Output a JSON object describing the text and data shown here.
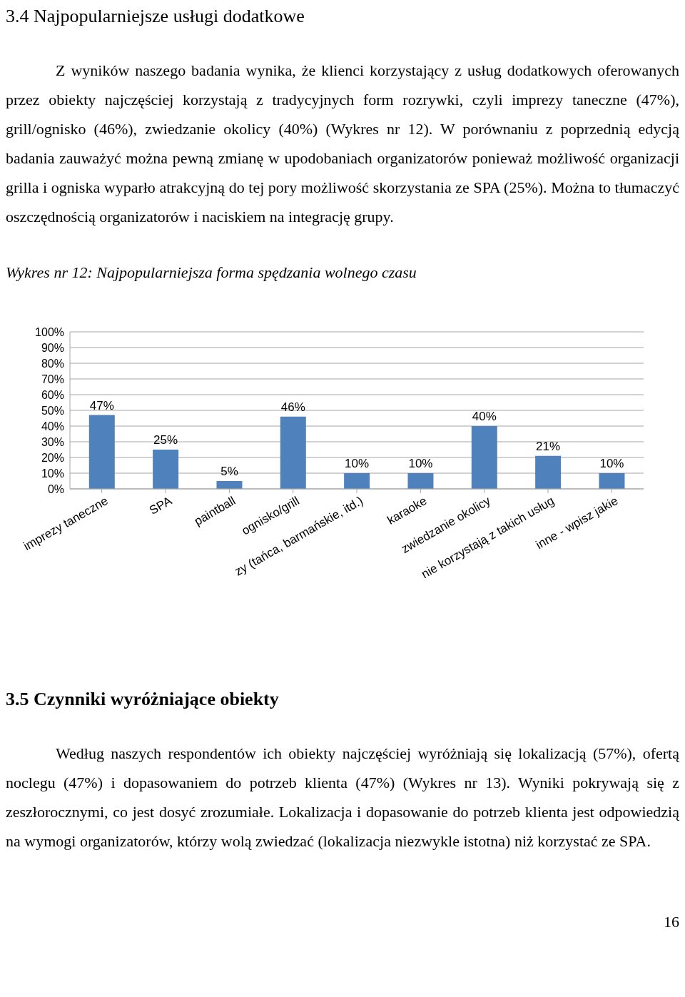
{
  "chart_data": {
    "type": "bar",
    "title": "Wykres nr 12: Najpopularniejsza forma spędzania wolnego czasu",
    "categories": [
      "imprezy taneczne",
      "SPA",
      "paintball",
      "ognisko/grill",
      "zy (tańca, barmańskie, itd.)",
      "karaoke",
      "zwiedzanie okolicy",
      "nie korzystają z takich usług",
      "inne - wpisz jakie"
    ],
    "values": [
      47,
      25,
      5,
      46,
      10,
      10,
      40,
      21,
      10
    ],
    "value_labels": [
      "47%",
      "25%",
      "5%",
      "46%",
      "10%",
      "10%",
      "40%",
      "21%",
      "10%"
    ],
    "color": "#4f81bd",
    "ylim": [
      0,
      100
    ],
    "yticks": [
      {
        "value": 0,
        "label": "0%"
      },
      {
        "value": 10,
        "label": "10%"
      },
      {
        "value": 20,
        "label": "20%"
      },
      {
        "value": 30,
        "label": "30%"
      },
      {
        "value": 40,
        "label": "40%"
      },
      {
        "value": 50,
        "label": "50%"
      },
      {
        "value": 60,
        "label": "60%"
      },
      {
        "value": 70,
        "label": "70%"
      },
      {
        "value": 80,
        "label": "80%"
      },
      {
        "value": 90,
        "label": "90%"
      },
      {
        "value": 100,
        "label": "100%"
      }
    ],
    "grid": "y",
    "annotations": [
      "3.4 Najpopularniejsze usługi dodatkowe",
      "Z wyników naszego badania wynika, że klienci korzystający z usług dodatkowych oferowanych przez obiekty najczęściej korzystają z tradycyjnych form rozrywki, czyli imprezy taneczne (47%), grill/ognisko (46%), zwiedzanie okolicy (40%) (Wykres nr 12). W porównaniu z poprzednią edycją badania zauważyć można pewną zmianę w upodobaniach organizatorów ponieważ możliwość organizacji grilla i ogniska wyparło atrakcyjną do tej pory możliwość skorzystania ze SPA (25%). Można to tłumaczyć oszczędnością organizatorów i naciskiem na integrację grupy.",
      "3.5 Czynniki wyróżniające obiekty",
      "Według naszych respondentów ich obiekty najczęściej wyróżniają się lokalizacją (57%), ofertą noclegu (47%) i dopasowaniem do potrzeb klienta (47%) (Wykres nr 13). Wyniki pokrywają się z zeszłorocznymi, co jest dosyć zrozumiałe. Lokalizacja i dopasowanie do potrzeb klienta jest odpowiedzią na wymogi organizatorów, którzy wolą zwiedzać (lokalizacja niezwykle istotna) niż korzystać ze SPA.",
      "16"
    ]
  }
}
